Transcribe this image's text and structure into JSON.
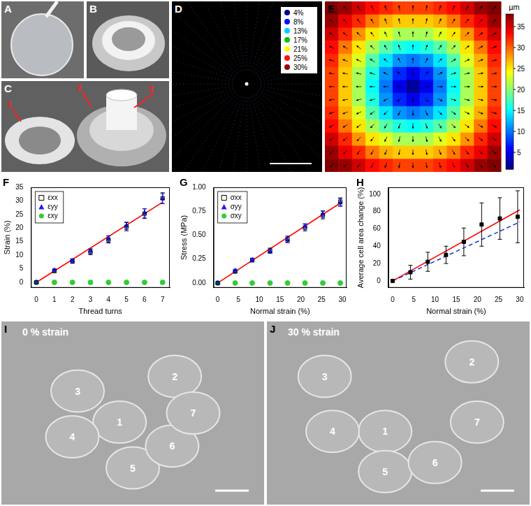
{
  "panels": {
    "A": {
      "label": "A"
    },
    "B": {
      "label": "B"
    },
    "C": {
      "label": "C",
      "callouts": [
        "1",
        "2",
        "3"
      ]
    },
    "D": {
      "label": "D",
      "legend": [
        {
          "label": "4%",
          "color": "#00008c"
        },
        {
          "label": "8%",
          "color": "#0010ff"
        },
        {
          "label": "13%",
          "color": "#00d0ff"
        },
        {
          "label": "17%",
          "color": "#10c010"
        },
        {
          "label": "21%",
          "color": "#ffff00"
        },
        {
          "label": "25%",
          "color": "#ff1010"
        },
        {
          "label": "30%",
          "color": "#a00000"
        }
      ]
    },
    "I": {
      "label": "I",
      "caption": "0 % strain",
      "cells": [
        "1",
        "2",
        "3",
        "4",
        "5",
        "6",
        "7"
      ]
    },
    "J": {
      "label": "J",
      "caption": "30 % strain",
      "cells": [
        "1",
        "2",
        "3",
        "4",
        "5",
        "6",
        "7"
      ]
    }
  },
  "chart_data": [
    {
      "panel": "E",
      "type": "heatmap",
      "cells": [
        [
          38,
          37,
          35,
          33,
          32,
          31,
          31,
          31,
          32,
          33,
          35,
          37,
          38
        ],
        [
          37,
          34,
          32,
          29,
          27,
          26,
          26,
          26,
          27,
          29,
          32,
          34,
          37
        ],
        [
          35,
          32,
          28,
          25,
          23,
          21,
          21,
          21,
          23,
          25,
          28,
          32,
          35
        ],
        [
          33,
          29,
          25,
          21,
          18,
          16,
          15,
          16,
          18,
          21,
          25,
          29,
          33
        ],
        [
          32,
          27,
          23,
          18,
          14,
          11,
          10,
          11,
          14,
          18,
          23,
          27,
          32
        ],
        [
          31,
          26,
          21,
          16,
          11,
          7,
          5,
          7,
          11,
          16,
          21,
          26,
          31
        ],
        [
          31,
          26,
          21,
          15,
          10,
          5,
          2,
          5,
          10,
          15,
          21,
          26,
          31
        ],
        [
          31,
          26,
          21,
          16,
          11,
          7,
          5,
          7,
          11,
          16,
          21,
          26,
          31
        ],
        [
          32,
          27,
          23,
          18,
          14,
          11,
          10,
          11,
          14,
          18,
          23,
          27,
          32
        ],
        [
          33,
          29,
          25,
          21,
          18,
          16,
          15,
          16,
          18,
          21,
          25,
          29,
          33
        ],
        [
          35,
          32,
          28,
          25,
          23,
          21,
          21,
          21,
          23,
          25,
          28,
          32,
          35
        ],
        [
          37,
          34,
          32,
          29,
          27,
          26,
          26,
          26,
          27,
          29,
          32,
          34,
          37
        ],
        [
          38,
          37,
          35,
          33,
          32,
          31,
          31,
          31,
          32,
          33,
          35,
          37,
          38
        ]
      ],
      "colorbar": {
        "range": [
          1,
          38
        ],
        "ticks": [
          5,
          10,
          15,
          20,
          25,
          30,
          35
        ],
        "label": "µm"
      }
    },
    {
      "panel": "F",
      "type": "scatter",
      "x_label": "Thread turns",
      "y_label": "Strain (%)",
      "x": [
        0,
        1,
        2,
        3,
        4,
        5,
        6,
        7
      ],
      "series": [
        {
          "name": "εxx",
          "color": "#000000",
          "marker": "open_square",
          "values": [
            0,
            4.2,
            7.8,
            11.2,
            15.8,
            20.5,
            25.3,
            31.0
          ],
          "errors": [
            0,
            0.6,
            0.8,
            1.0,
            1.3,
            1.5,
            1.8,
            2.0
          ]
        },
        {
          "name": "εyy",
          "color": "#1a1aff",
          "marker": "triangle",
          "values": [
            0,
            4.5,
            8.0,
            11.5,
            16.0,
            20.8,
            25.5,
            30.8
          ],
          "errors": [
            0,
            0.5,
            0.7,
            0.9,
            1.2,
            1.4,
            1.6,
            1.8
          ]
        },
        {
          "name": "εxy",
          "color": "#33cc33",
          "marker": "circle",
          "values": [
            0,
            0,
            0,
            0,
            0,
            0,
            0,
            0
          ],
          "errors": [
            0,
            0,
            0,
            0,
            0,
            0,
            0,
            0
          ]
        }
      ],
      "fits": [
        {
          "x": [
            0,
            7
          ],
          "values": [
            0,
            29.5
          ],
          "color": "#ff0000",
          "line_style": "solid"
        }
      ],
      "xlim": [
        -0.3,
        7.4
      ],
      "xticks": [
        0,
        1,
        2,
        3,
        4,
        5,
        6,
        7
      ],
      "ylim": [
        -2,
        35
      ],
      "yticks": [
        0,
        5,
        10,
        15,
        20,
        25,
        30,
        35
      ],
      "grid": false,
      "legend": "upper left"
    },
    {
      "panel": "G",
      "type": "scatter",
      "x_label": "Normal strain (%)",
      "y_label": "Stress (MPa)",
      "x": [
        0,
        4.2,
        8.3,
        12.6,
        16.8,
        21.0,
        25.3,
        29.5
      ],
      "series": [
        {
          "name": "σxx",
          "color": "#000000",
          "marker": "open_square",
          "values": [
            0,
            0.12,
            0.24,
            0.34,
            0.46,
            0.58,
            0.71,
            0.85
          ],
          "errors": [
            0,
            0.015,
            0.02,
            0.025,
            0.03,
            0.035,
            0.04,
            0.04
          ]
        },
        {
          "name": "σyy",
          "color": "#1a1aff",
          "marker": "triangle",
          "values": [
            0,
            0.13,
            0.24,
            0.33,
            0.45,
            0.59,
            0.72,
            0.84
          ],
          "errors": [
            0,
            0.015,
            0.02,
            0.02,
            0.03,
            0.03,
            0.035,
            0.04
          ]
        },
        {
          "name": "σxy",
          "color": "#33cc33",
          "marker": "circle",
          "values": [
            0,
            0,
            0,
            0,
            0,
            0,
            0,
            0
          ],
          "errors": [
            0,
            0,
            0,
            0,
            0,
            0,
            0,
            0
          ]
        }
      ],
      "fits": [
        {
          "x": [
            0,
            30
          ],
          "values": [
            0,
            0.85
          ],
          "color": "#ff0000",
          "line_style": "solid"
        }
      ],
      "xlim": [
        -1,
        31
      ],
      "xticks": [
        0,
        5,
        10,
        15,
        20,
        25,
        30
      ],
      "ylim": [
        -0.05,
        1.0
      ],
      "yticks": [
        {
          "value": 0,
          "label": "0.00"
        },
        {
          "value": 0.25,
          "label": "0.25"
        },
        {
          "value": 0.5,
          "label": "0.50"
        },
        {
          "value": 0.75,
          "label": "0.75"
        },
        {
          "value": 1.0,
          "label": "1.00"
        }
      ],
      "grid": false,
      "legend": "upper left"
    },
    {
      "panel": "H",
      "type": "scatter",
      "x_label": "Normal strain (%)",
      "y_label": "Average cell area change (%)",
      "x": [
        0,
        4.2,
        8.3,
        12.6,
        16.8,
        21.0,
        25.3,
        29.5
      ],
      "series": [
        {
          "color": "#000000",
          "marker": "square",
          "values": [
            0,
            10,
            22,
            30,
            45,
            65,
            72,
            74
          ],
          "errors": [
            0,
            8,
            11,
            10,
            16,
            25,
            24,
            30
          ]
        }
      ],
      "fits": [
        {
          "x": [
            0,
            30
          ],
          "values": [
            0,
            82
          ],
          "color": "#ff0000",
          "line_style": "solid"
        },
        {
          "x": [
            0,
            30
          ],
          "values": [
            0,
            68
          ],
          "color": "#1f3fd0",
          "line_style": "dashed"
        }
      ],
      "xlim": [
        -1,
        31
      ],
      "xticks": [
        0,
        5,
        10,
        15,
        20,
        25,
        30
      ],
      "ylim": [
        -8,
        108
      ],
      "yticks": [
        0,
        20,
        40,
        60,
        80,
        100
      ],
      "grid": false
    }
  ]
}
